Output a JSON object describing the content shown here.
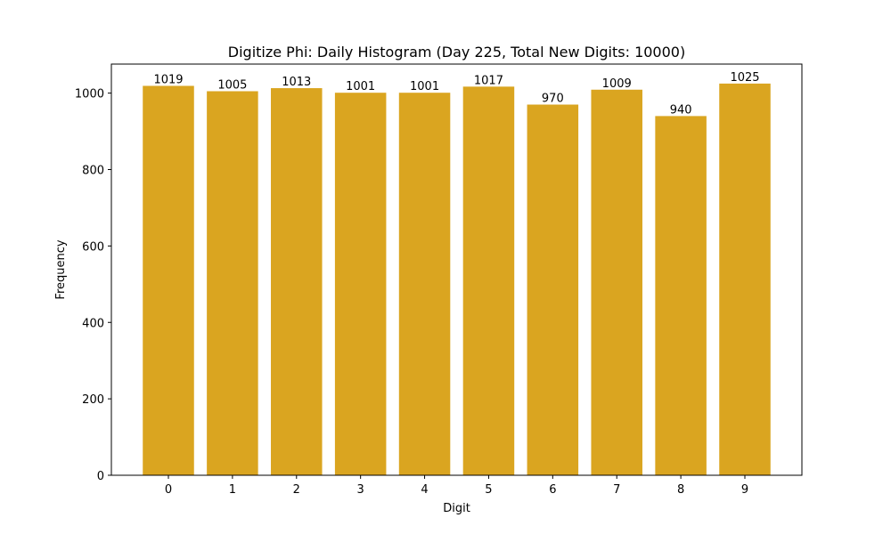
{
  "chart_data": {
    "type": "bar",
    "title": "Digitize Phi: Daily Histogram (Day 225, Total New Digits: 10000)",
    "xlabel": "Digit",
    "ylabel": "Frequency",
    "categories": [
      "0",
      "1",
      "2",
      "3",
      "4",
      "5",
      "6",
      "7",
      "8",
      "9"
    ],
    "values": [
      1019,
      1005,
      1013,
      1001,
      1001,
      1017,
      970,
      1009,
      940,
      1025
    ],
    "bar_labels": [
      "1019",
      "1005",
      "1013",
      "1001",
      "1001",
      "1017",
      "970",
      "1009",
      "940",
      "1025"
    ],
    "ylim": [
      0,
      1076
    ],
    "yticks": [
      0,
      200,
      400,
      600,
      800,
      1000
    ],
    "bar_color": "#DAA520",
    "grid": false,
    "legend": null
  }
}
